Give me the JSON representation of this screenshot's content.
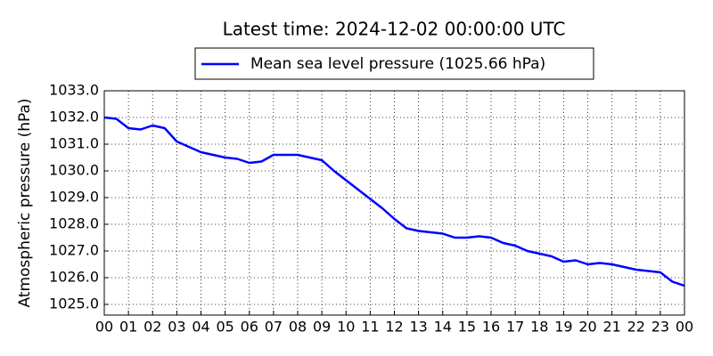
{
  "chart_data": {
    "type": "line",
    "title": "Latest time: 2024-12-02 00:00:00 UTC",
    "y_label": "Atmospheric pressure (hPa)",
    "legend": "upper center",
    "grid": true,
    "x": [
      0,
      0.5,
      1,
      1.5,
      2,
      2.5,
      3,
      3.5,
      4,
      4.5,
      5,
      5.5,
      6,
      6.5,
      7,
      7.5,
      8,
      8.5,
      9,
      9.5,
      10,
      10.5,
      11,
      11.5,
      12,
      12.5,
      13,
      13.5,
      14,
      14.5,
      15,
      15.5,
      16,
      16.5,
      17,
      17.5,
      18,
      18.5,
      19,
      19.5,
      20,
      20.5,
      21,
      21.5,
      22,
      22.5,
      23,
      23.5,
      24
    ],
    "series": [
      {
        "name": "Mean sea level pressure (1025.66 hPa)",
        "color": "#0000ff",
        "values": [
          1032.0,
          1031.95,
          1031.6,
          1031.55,
          1031.7,
          1031.6,
          1031.1,
          1030.9,
          1030.7,
          1030.6,
          1030.5,
          1030.45,
          1030.3,
          1030.35,
          1030.6,
          1030.6,
          1030.6,
          1030.5,
          1030.4,
          1030.0,
          1029.65,
          1029.3,
          1028.95,
          1028.6,
          1028.2,
          1027.85,
          1027.75,
          1027.7,
          1027.65,
          1027.5,
          1027.5,
          1027.55,
          1027.5,
          1027.3,
          1027.2,
          1027.0,
          1026.9,
          1026.8,
          1026.6,
          1026.65,
          1026.5,
          1026.55,
          1026.5,
          1026.4,
          1026.3,
          1026.25,
          1026.2,
          1025.85,
          1025.7
        ]
      }
    ],
    "xlim": [
      0,
      24
    ],
    "xticks": [
      {
        "value": 0,
        "label": "00"
      },
      {
        "value": 1,
        "label": "01"
      },
      {
        "value": 2,
        "label": "02"
      },
      {
        "value": 3,
        "label": "03"
      },
      {
        "value": 4,
        "label": "04"
      },
      {
        "value": 5,
        "label": "05"
      },
      {
        "value": 6,
        "label": "06"
      },
      {
        "value": 7,
        "label": "07"
      },
      {
        "value": 8,
        "label": "08"
      },
      {
        "value": 9,
        "label": "09"
      },
      {
        "value": 10,
        "label": "10"
      },
      {
        "value": 11,
        "label": "11"
      },
      {
        "value": 12,
        "label": "12"
      },
      {
        "value": 13,
        "label": "13"
      },
      {
        "value": 14,
        "label": "14"
      },
      {
        "value": 15,
        "label": "15"
      },
      {
        "value": 16,
        "label": "16"
      },
      {
        "value": 17,
        "label": "17"
      },
      {
        "value": 18,
        "label": "18"
      },
      {
        "value": 19,
        "label": "19"
      },
      {
        "value": 20,
        "label": "20"
      },
      {
        "value": 21,
        "label": "21"
      },
      {
        "value": 22,
        "label": "22"
      },
      {
        "value": 23,
        "label": "23"
      },
      {
        "value": 24,
        "label": "00"
      }
    ],
    "ylim": [
      1024.6,
      1033.0
    ],
    "yticks": [
      {
        "value": 1025,
        "label": "1025.0"
      },
      {
        "value": 1026,
        "label": "1026.0"
      },
      {
        "value": 1027,
        "label": "1027.0"
      },
      {
        "value": 1028,
        "label": "1028.0"
      },
      {
        "value": 1029,
        "label": "1029.0"
      },
      {
        "value": 1030,
        "label": "1030.0"
      },
      {
        "value": 1031,
        "label": "1031.0"
      },
      {
        "value": 1032,
        "label": "1032.0"
      },
      {
        "value": 1033,
        "label": "1033.0"
      }
    ]
  }
}
